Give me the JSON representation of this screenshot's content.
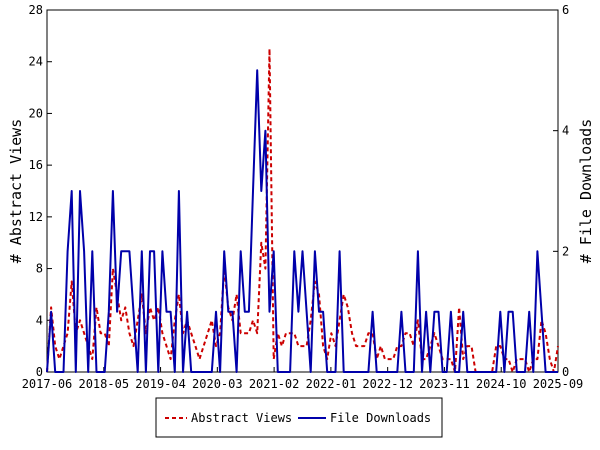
{
  "chart_data": {
    "type": "line",
    "x_ticks": [
      "2017-06",
      "2018-05",
      "2019-04",
      "2020-03",
      "2021-02",
      "2022-01",
      "2022-12",
      "2023-11",
      "2024-10",
      "2025-09"
    ],
    "y_left": {
      "label": "# Abstract Views",
      "ticks": [
        "0",
        "4",
        "8",
        "12",
        "16",
        "20",
        "24",
        "28"
      ],
      "range": [
        0,
        28
      ]
    },
    "y_right": {
      "label": "# File Downloads",
      "ticks": [
        "0",
        "2",
        "4",
        "6"
      ],
      "range": [
        0,
        6
      ]
    },
    "legend": {
      "placement": "bottom",
      "items": [
        "Abstract Views",
        "File Downloads"
      ]
    },
    "grid": false,
    "series": [
      {
        "name": "Abstract Views",
        "axis": "left",
        "color": "#cc0000",
        "style": "dashed",
        "values": [
          0,
          5,
          2,
          1,
          2,
          3,
          7,
          3,
          4,
          3,
          2,
          1,
          5,
          3,
          3,
          2,
          8,
          6,
          4,
          5,
          3,
          2,
          4,
          6,
          3,
          5,
          4,
          5,
          3,
          2,
          1,
          4,
          6,
          3,
          4,
          3,
          2,
          1,
          2,
          3,
          4,
          2,
          3,
          8,
          5,
          4,
          6,
          3,
          3,
          3,
          4,
          3,
          10,
          8,
          25,
          1,
          3,
          2,
          3,
          3,
          3,
          2,
          2,
          2,
          4,
          7,
          6,
          2,
          1,
          3,
          2,
          4,
          6,
          5,
          3,
          2,
          2,
          2,
          3,
          3,
          1,
          2,
          1,
          1,
          1,
          2,
          2,
          3,
          3,
          2,
          4,
          1,
          1,
          2,
          3,
          2,
          1,
          1,
          1,
          0,
          5,
          1,
          2,
          2,
          0,
          0,
          0,
          0,
          0,
          2,
          2,
          1,
          1,
          0,
          1,
          1,
          1,
          0,
          1,
          1,
          4,
          3,
          1,
          0,
          2
        ]
      },
      {
        "name": "File Downloads",
        "axis": "right",
        "color": "#0000aa",
        "style": "solid",
        "values": [
          0,
          1,
          0,
          0,
          0,
          2,
          3,
          0,
          3,
          2,
          0,
          2,
          0,
          0,
          0,
          1,
          3,
          1,
          2,
          2,
          2,
          1,
          0,
          2,
          0,
          2,
          2,
          0,
          2,
          1,
          1,
          0,
          3,
          0,
          1,
          0,
          0,
          0,
          0,
          0,
          0,
          1,
          0,
          2,
          1,
          1,
          0,
          2,
          1,
          1,
          3,
          5,
          3,
          4,
          1,
          2,
          0,
          0,
          0,
          0,
          2,
          1,
          2,
          1,
          0,
          2,
          1,
          1,
          0,
          0,
          0,
          2,
          0,
          0,
          0,
          0,
          0,
          0,
          0,
          1,
          0,
          0,
          0,
          0,
          0,
          0,
          1,
          0,
          0,
          0,
          2,
          0,
          1,
          0,
          1,
          1,
          0,
          0,
          1,
          0,
          0,
          1,
          0,
          0,
          0,
          0,
          0,
          0,
          0,
          0,
          1,
          0,
          1,
          1,
          0,
          0,
          0,
          1,
          0,
          2,
          1,
          0,
          0,
          0,
          0
        ]
      }
    ]
  }
}
